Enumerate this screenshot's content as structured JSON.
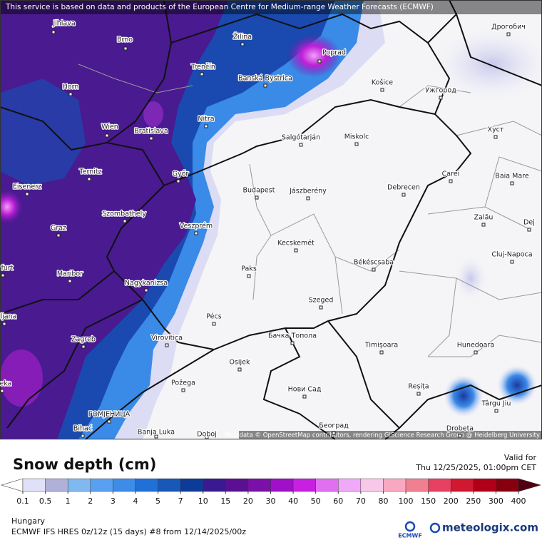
{
  "map": {
    "attribution_top": "This service is based on data and products of the European Centre for Medium-range Weather Forecasts (ECMWF)",
    "attribution_bottom": "Map data © OpenStreetMap contributors, rendering GIScience Research Group @ Heidelberg University",
    "cities": [
      "Jihlava",
      "Brno",
      "Žilina",
      "Poprad",
      "Trenčín",
      "Banská Bystrica",
      "Košice",
      "Ужгород",
      "Дрогобич",
      "Horn",
      "Nitra",
      "Wien",
      "Bratislava",
      "Salgótarján",
      "Miskolc",
      "Хуст",
      "Ternitz",
      "Győr",
      "Carei",
      "Baia Mare",
      "Eisenerz",
      "Budapest",
      "Jászberény",
      "Debrecen",
      "Szombathely",
      "Zalău",
      "Graz",
      "Veszprém",
      "Kecskemét",
      "Dej",
      "Cluj-Napoca",
      "Maribor",
      "Paks",
      "Békéscsaba",
      "Nagykanizsa",
      "Szeged",
      "Pécs",
      "Zagreb",
      "Virovitica",
      "Бачка Топола",
      "Timișoara",
      "Hunedoara",
      "Osijek",
      "Reșița",
      "Târgu Jiu",
      "Požega",
      "Нови Сад",
      "Drobeta",
      "ГОМЈЕНИЦА",
      "Bihać",
      "Banja Luka",
      "Doboj",
      "Београд",
      "ljana",
      "furt",
      "eka"
    ]
  },
  "legend": {
    "title": "Snow depth (cm)",
    "valid_label": "Valid for",
    "valid_time": "Thu 12/25/2025, 01:00pm CET",
    "ticks": [
      0.1,
      0.5,
      1,
      2,
      3,
      4,
      5,
      7,
      10,
      15,
      20,
      30,
      40,
      50,
      60,
      70,
      80,
      100,
      150,
      200,
      250,
      300,
      400
    ],
    "colors": [
      "#ffffff",
      "#e0e0f8",
      "#b0b0d8",
      "#80b8f0",
      "#5aa0f0",
      "#3c8ce8",
      "#2070d8",
      "#1858b8",
      "#0c3c98",
      "#3a1a90",
      "#5a1090",
      "#7a10a8",
      "#a010c8",
      "#c820e0",
      "#e070f0",
      "#f0a8f8",
      "#f8c8e8",
      "#f8a8c0",
      "#f08090",
      "#e84060",
      "#d01830",
      "#b00018",
      "#880010",
      "#500010"
    ]
  },
  "footer": {
    "region": "Hungary",
    "model": "ECMWF IFS HRES 0z/12z (15 days) #8 from  12/14/2025/00z",
    "ecmwf_logo": "ECMWF",
    "brand": "meteologix.com"
  }
}
